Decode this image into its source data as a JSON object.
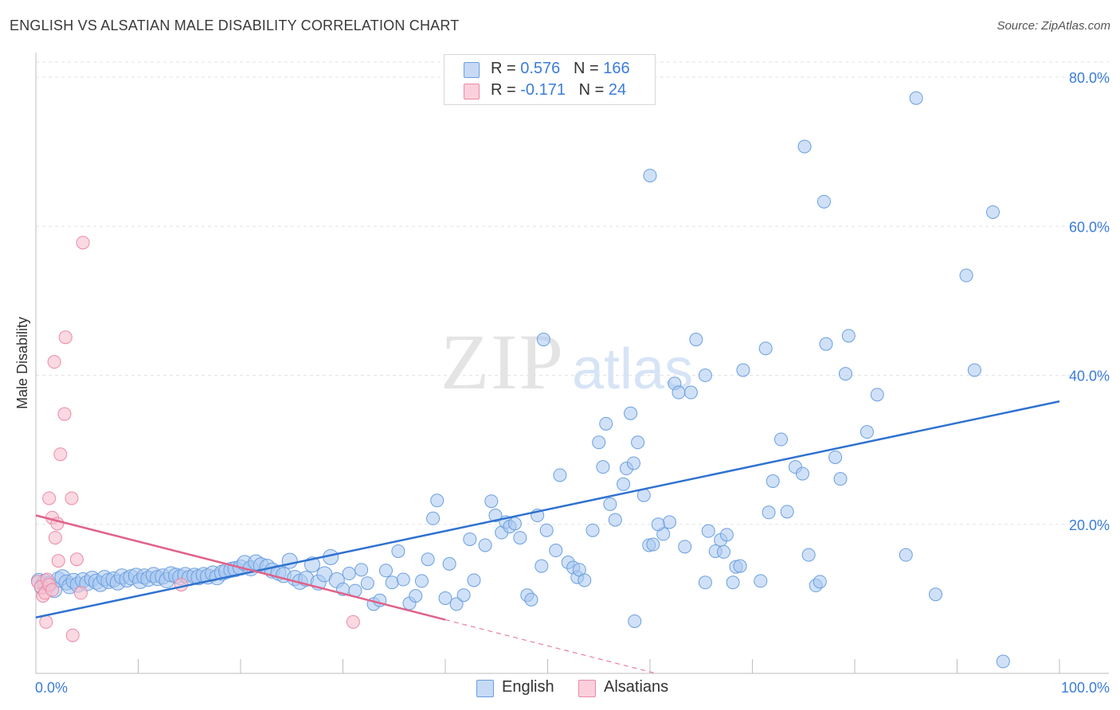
{
  "header": {
    "title": "ENGLISH VS ALSATIAN MALE DISABILITY CORRELATION CHART",
    "source": "Source: ZipAtlas.com"
  },
  "legend": {
    "rows": [
      {
        "r_label": "R = ",
        "r_value": "0.576",
        "n_label": "N = ",
        "n_value": "166",
        "color": "#aac8f0"
      },
      {
        "r_label": "R = ",
        "r_value": "-0.171",
        "n_label": "N = ",
        "n_value": "24",
        "color": "#f8b8c8"
      }
    ],
    "bottom": [
      {
        "label": "English",
        "color": "#aac8f0"
      },
      {
        "label": "Alsatians",
        "color": "#f8b8c8"
      }
    ]
  },
  "watermark": {
    "zip": "ZIP",
    "atlas": "atlas"
  },
  "chart_data": {
    "type": "scatter",
    "ylabel": "Male Disability",
    "xlim": [
      0,
      100
    ],
    "ylim": [
      0,
      80
    ],
    "x_tick_labels": [
      "0.0%",
      "100.0%"
    ],
    "y_ticks": [
      {
        "value": 20,
        "label": "20.0%"
      },
      {
        "value": 40,
        "label": "40.0%"
      },
      {
        "value": 60,
        "label": "60.0%"
      },
      {
        "value": 80,
        "label": "80.0%"
      }
    ],
    "grid": true,
    "legend_position": "top-center",
    "colors": {
      "english_fill": "#aac8f0",
      "english_stroke": "#6a9fe0",
      "english_line": "#2f72d0",
      "alsatian_fill": "#f8c0cf",
      "alsatian_stroke": "#ea8aa6",
      "alsatian_line": "#e0628a",
      "tick_label": "#3b7dd8",
      "grid": "#e3e3e3"
    },
    "series": [
      {
        "name": "English",
        "trend": {
          "x": [
            0,
            100
          ],
          "y": [
            7.5,
            36.5
          ]
        },
        "points": [
          [
            0.3,
            12.4
          ],
          [
            0.6,
            11.6
          ],
          [
            0.9,
            12.3
          ],
          [
            1.3,
            12.0
          ],
          [
            1.8,
            11.2
          ],
          [
            2.2,
            12.6
          ],
          [
            2.6,
            12.9
          ],
          [
            3.0,
            12.2
          ],
          [
            3.3,
            11.7
          ],
          [
            3.7,
            12.4
          ],
          [
            4.1,
            11.9
          ],
          [
            4.6,
            12.5
          ],
          [
            5.0,
            12.1
          ],
          [
            5.5,
            12.7
          ],
          [
            5.9,
            12.3
          ],
          [
            6.3,
            12.0
          ],
          [
            6.7,
            12.8
          ],
          [
            7.1,
            12.4
          ],
          [
            7.6,
            12.6
          ],
          [
            8.0,
            12.2
          ],
          [
            8.4,
            13.0
          ],
          [
            8.9,
            12.6
          ],
          [
            9.3,
            12.9
          ],
          [
            9.8,
            13.1
          ],
          [
            10.2,
            12.4
          ],
          [
            10.6,
            13.0
          ],
          [
            11.0,
            12.7
          ],
          [
            11.5,
            13.2
          ],
          [
            11.9,
            12.8
          ],
          [
            12.4,
            13.0
          ],
          [
            12.8,
            12.5
          ],
          [
            13.2,
            13.3
          ],
          [
            13.7,
            13.1
          ],
          [
            14.1,
            12.9
          ],
          [
            14.6,
            13.2
          ],
          [
            15.0,
            12.8
          ],
          [
            15.5,
            13.1
          ],
          [
            15.9,
            12.9
          ],
          [
            16.4,
            13.2
          ],
          [
            16.8,
            13.0
          ],
          [
            17.3,
            13.4
          ],
          [
            17.7,
            12.9
          ],
          [
            18.2,
            13.5
          ],
          [
            18.6,
            13.7
          ],
          [
            19.1,
            13.9
          ],
          [
            19.5,
            14.0
          ],
          [
            20.0,
            14.2
          ],
          [
            20.4,
            14.8
          ],
          [
            21.0,
            14.1
          ],
          [
            21.5,
            14.9
          ],
          [
            22.0,
            14.5
          ],
          [
            22.6,
            14.3
          ],
          [
            23.1,
            13.8
          ],
          [
            23.7,
            13.5
          ],
          [
            24.2,
            13.2
          ],
          [
            24.8,
            15.1
          ],
          [
            25.3,
            12.8
          ],
          [
            25.8,
            12.3
          ],
          [
            26.4,
            12.7
          ],
          [
            27.0,
            14.6
          ],
          [
            27.6,
            12.2
          ],
          [
            28.2,
            13.3
          ],
          [
            28.8,
            15.6
          ],
          [
            29.4,
            12.5
          ],
          [
            30.0,
            11.3
          ],
          [
            30.6,
            13.4
          ],
          [
            31.2,
            11.1
          ],
          [
            31.8,
            13.9
          ],
          [
            32.4,
            12.1
          ],
          [
            33.0,
            9.3
          ],
          [
            33.6,
            9.8
          ],
          [
            34.2,
            13.8
          ],
          [
            34.8,
            12.2
          ],
          [
            35.4,
            16.4
          ],
          [
            35.9,
            12.6
          ],
          [
            36.5,
            9.4
          ],
          [
            37.1,
            10.4
          ],
          [
            37.7,
            12.4
          ],
          [
            38.3,
            15.3
          ],
          [
            38.8,
            20.8
          ],
          [
            39.2,
            23.2
          ],
          [
            40.0,
            10.1
          ],
          [
            40.4,
            14.7
          ],
          [
            41.1,
            9.3
          ],
          [
            41.8,
            10.5
          ],
          [
            42.4,
            18.0
          ],
          [
            42.8,
            12.5
          ],
          [
            43.9,
            17.2
          ],
          [
            44.5,
            23.1
          ],
          [
            44.9,
            21.2
          ],
          [
            45.5,
            18.9
          ],
          [
            45.9,
            20.3
          ],
          [
            46.3,
            19.7
          ],
          [
            46.8,
            20.1
          ],
          [
            47.3,
            18.2
          ],
          [
            48.0,
            10.5
          ],
          [
            48.4,
            9.9
          ],
          [
            49.0,
            21.2
          ],
          [
            49.4,
            14.4
          ],
          [
            49.9,
            19.2
          ],
          [
            50.8,
            16.5
          ],
          [
            51.2,
            26.6
          ],
          [
            52.0,
            14.9
          ],
          [
            52.5,
            14.2
          ],
          [
            52.9,
            12.9
          ],
          [
            53.1,
            13.9
          ],
          [
            53.6,
            12.5
          ],
          [
            54.4,
            19.2
          ],
          [
            55.0,
            31.0
          ],
          [
            55.4,
            27.7
          ],
          [
            55.7,
            33.5
          ],
          [
            56.1,
            22.7
          ],
          [
            56.6,
            20.6
          ],
          [
            57.4,
            25.4
          ],
          [
            57.7,
            27.5
          ],
          [
            58.1,
            34.9
          ],
          [
            58.4,
            28.2
          ],
          [
            58.8,
            31.0
          ],
          [
            59.4,
            23.9
          ],
          [
            59.9,
            17.2
          ],
          [
            60.3,
            17.3
          ],
          [
            61.3,
            18.7
          ],
          [
            61.9,
            20.3
          ],
          [
            62.4,
            38.9
          ],
          [
            62.8,
            37.7
          ],
          [
            63.4,
            17.0
          ],
          [
            64.0,
            37.7
          ],
          [
            64.5,
            44.8
          ],
          [
            65.4,
            40.0
          ],
          [
            65.7,
            19.1
          ],
          [
            66.4,
            16.4
          ],
          [
            66.9,
            17.9
          ],
          [
            67.2,
            16.3
          ],
          [
            67.5,
            18.6
          ],
          [
            68.1,
            12.2
          ],
          [
            68.4,
            14.3
          ],
          [
            68.8,
            14.4
          ],
          [
            69.1,
            40.7
          ],
          [
            70.8,
            12.4
          ],
          [
            71.3,
            43.6
          ],
          [
            71.6,
            21.6
          ],
          [
            72.0,
            25.8
          ],
          [
            72.8,
            31.4
          ],
          [
            73.4,
            21.7
          ],
          [
            74.2,
            27.7
          ],
          [
            74.9,
            26.8
          ],
          [
            75.1,
            70.7
          ],
          [
            75.5,
            15.9
          ],
          [
            76.2,
            11.8
          ],
          [
            76.6,
            12.3
          ],
          [
            77.0,
            63.3
          ],
          [
            77.2,
            44.2
          ],
          [
            78.1,
            29.0
          ],
          [
            78.6,
            26.1
          ],
          [
            79.1,
            40.2
          ],
          [
            79.4,
            45.3
          ],
          [
            81.2,
            32.4
          ],
          [
            82.2,
            37.4
          ],
          [
            85.0,
            15.9
          ],
          [
            86.0,
            77.2
          ],
          [
            87.9,
            10.6
          ],
          [
            90.9,
            53.4
          ],
          [
            91.7,
            40.7
          ],
          [
            93.5,
            61.9
          ],
          [
            94.5,
            1.6
          ],
          [
            58.5,
            7.0
          ],
          [
            60.0,
            66.8
          ],
          [
            60.8,
            20.0
          ],
          [
            65.4,
            12.2
          ],
          [
            49.6,
            44.8
          ]
        ]
      },
      {
        "name": "Alsatians",
        "trend": {
          "x": [
            0,
            40
          ],
          "y": [
            21.2,
            7.2
          ]
        },
        "trend_dashed": {
          "x": [
            40,
            100
          ],
          "y": [
            7.2,
            -13.8
          ]
        },
        "points": [
          [
            0.2,
            12.3
          ],
          [
            0.5,
            11.6
          ],
          [
            0.7,
            10.4
          ],
          [
            0.9,
            10.8
          ],
          [
            1.1,
            12.6
          ],
          [
            1.3,
            11.9
          ],
          [
            1.6,
            11.2
          ],
          [
            1.0,
            6.9
          ],
          [
            1.3,
            23.5
          ],
          [
            1.6,
            20.9
          ],
          [
            1.9,
            18.2
          ],
          [
            1.8,
            41.8
          ],
          [
            2.1,
            20.1
          ],
          [
            2.2,
            15.1
          ],
          [
            2.4,
            29.4
          ],
          [
            2.8,
            34.8
          ],
          [
            2.9,
            45.1
          ],
          [
            3.5,
            23.5
          ],
          [
            3.6,
            5.1
          ],
          [
            4.0,
            15.3
          ],
          [
            4.4,
            10.8
          ],
          [
            4.6,
            57.8
          ],
          [
            14.2,
            11.9
          ],
          [
            31.0,
            6.9
          ]
        ]
      }
    ]
  }
}
